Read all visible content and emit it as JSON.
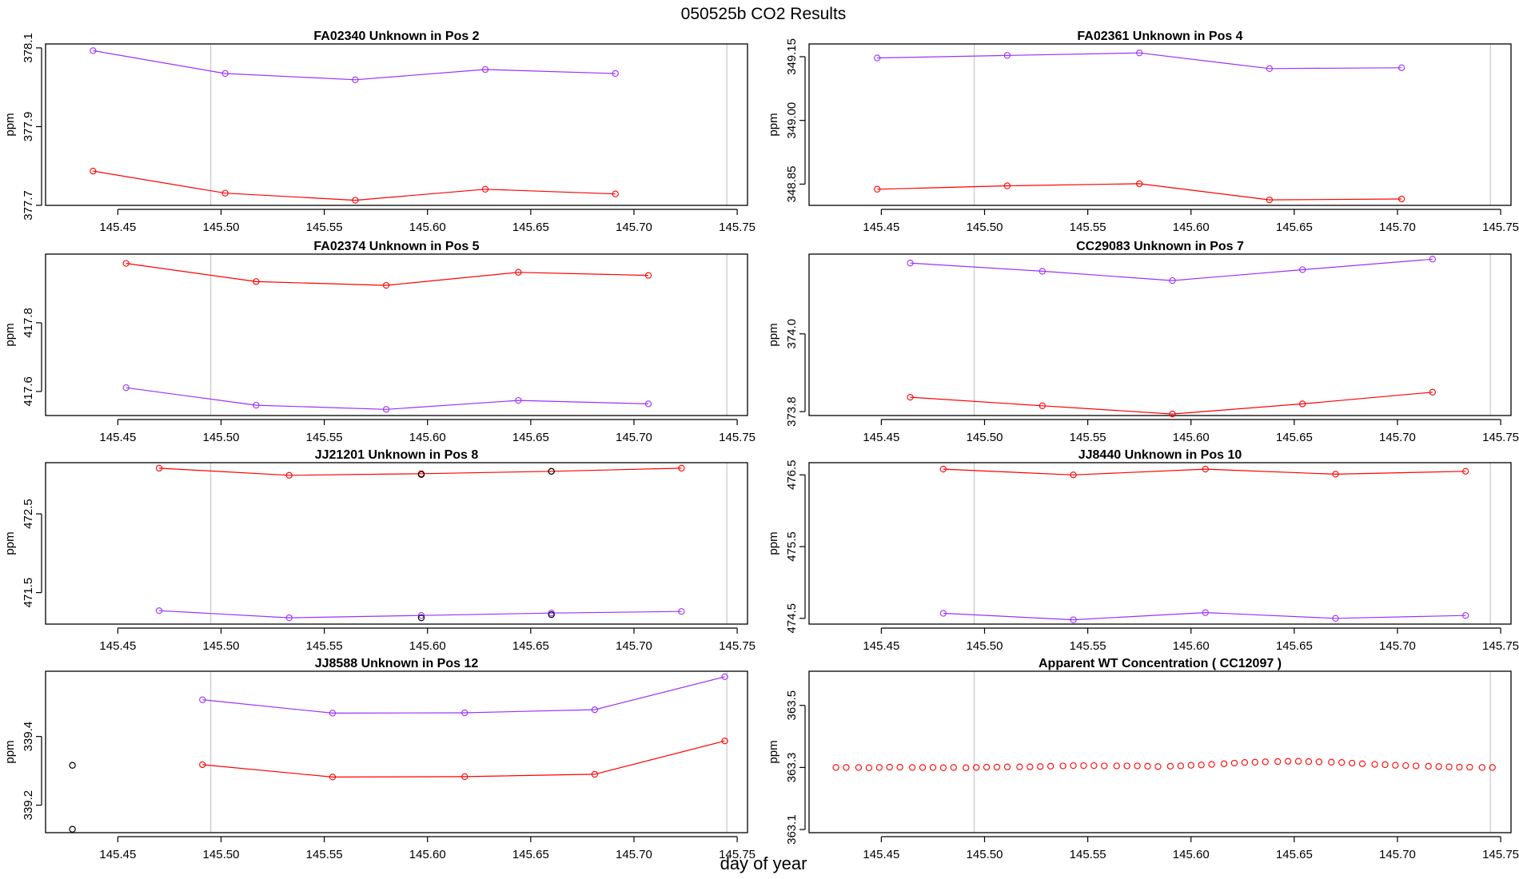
{
  "figure": {
    "title": "050525b  CO2 Results",
    "xlabel": "day of year",
    "colors": {
      "series_a": "#9b30ff",
      "series_b": "#ff0000",
      "outlier": "#000000",
      "frame": "#000000",
      "refline": "#c8c8c8"
    }
  },
  "chart_data": [
    {
      "type": "line",
      "title": "FA02340    Unknown in Pos 2",
      "ylabel": "ppm",
      "xlim": [
        145.415,
        145.755
      ],
      "ylim": [
        377.7,
        378.11
      ],
      "xticks": [
        "145.45",
        "145.50",
        "145.55",
        "145.60",
        "145.65",
        "145.70",
        "145.75"
      ],
      "yticks": [
        "377.7",
        "377.9",
        "378.1"
      ],
      "vlines": [
        145.495,
        145.745
      ],
      "series": [
        {
          "name": "upper",
          "color": "#9b30ff",
          "x": [
            145.438,
            145.502,
            145.565,
            145.628,
            145.691
          ],
          "y": [
            378.093,
            378.035,
            378.019,
            378.045,
            378.035
          ]
        },
        {
          "name": "lower",
          "color": "#ff0000",
          "x": [
            145.438,
            145.502,
            145.565,
            145.628,
            145.691
          ],
          "y": [
            377.787,
            377.731,
            377.713,
            377.741,
            377.729
          ]
        }
      ],
      "outliers": []
    },
    {
      "type": "line",
      "title": "FA02361    Unknown in Pos 4",
      "ylabel": "ppm",
      "xlim": [
        145.415,
        145.755
      ],
      "ylim": [
        348.8,
        349.18
      ],
      "xticks": [
        "145.45",
        "145.50",
        "145.55",
        "145.60",
        "145.65",
        "145.70",
        "145.75"
      ],
      "yticks": [
        "348.85",
        "349.00",
        "349.15"
      ],
      "vlines": [
        145.495,
        145.745
      ],
      "series": [
        {
          "name": "upper",
          "color": "#9b30ff",
          "x": [
            145.448,
            145.511,
            145.575,
            145.638,
            145.702
          ],
          "y": [
            349.147,
            349.153,
            349.159,
            349.122,
            349.124
          ]
        },
        {
          "name": "lower",
          "color": "#ff0000",
          "x": [
            145.448,
            145.511,
            145.575,
            145.638,
            145.702
          ],
          "y": [
            348.838,
            348.846,
            348.851,
            348.813,
            348.815
          ]
        }
      ],
      "outliers": []
    },
    {
      "type": "line",
      "title": "FA02374    Unknown in Pos 5",
      "ylabel": "ppm",
      "xlim": [
        145.415,
        145.755
      ],
      "ylim": [
        417.53,
        418.0
      ],
      "xticks": [
        "145.45",
        "145.50",
        "145.55",
        "145.60",
        "145.65",
        "145.70",
        "145.75"
      ],
      "yticks": [
        "417.6",
        "417.8"
      ],
      "vlines": [
        145.495,
        145.745
      ],
      "series": [
        {
          "name": "upper",
          "color": "#ff0000",
          "x": [
            145.454,
            145.517,
            145.58,
            145.644,
            145.707
          ],
          "y": [
            417.973,
            417.92,
            417.909,
            417.947,
            417.938
          ]
        },
        {
          "name": "lower",
          "color": "#9b30ff",
          "x": [
            145.454,
            145.517,
            145.58,
            145.644,
            145.707
          ],
          "y": [
            417.611,
            417.56,
            417.548,
            417.574,
            417.564
          ]
        }
      ],
      "outliers": []
    },
    {
      "type": "line",
      "title": "CC29083    Unknown in Pos 7",
      "ylabel": "ppm",
      "xlim": [
        145.415,
        145.755
      ],
      "ylim": [
        373.79,
        374.205
      ],
      "xticks": [
        "145.45",
        "145.50",
        "145.55",
        "145.60",
        "145.65",
        "145.70",
        "145.75"
      ],
      "yticks": [
        "373.8",
        "374.0"
      ],
      "vlines": [
        145.495,
        145.745
      ],
      "series": [
        {
          "name": "upper",
          "color": "#9b30ff",
          "x": [
            145.464,
            145.528,
            145.591,
            145.654,
            145.717
          ],
          "y": [
            374.182,
            374.161,
            374.137,
            374.165,
            374.192
          ]
        },
        {
          "name": "lower",
          "color": "#ff0000",
          "x": [
            145.464,
            145.528,
            145.591,
            145.654,
            145.717
          ],
          "y": [
            373.837,
            373.815,
            373.794,
            373.82,
            373.85
          ]
        }
      ],
      "outliers": []
    },
    {
      "type": "line",
      "title": "JJ21201    Unknown in Pos 8",
      "ylabel": "ppm",
      "xlim": [
        145.415,
        145.755
      ],
      "ylim": [
        471.1,
        473.15
      ],
      "xticks": [
        "145.45",
        "145.50",
        "145.55",
        "145.60",
        "145.65",
        "145.70",
        "145.75"
      ],
      "yticks": [
        "471.5",
        "472.5"
      ],
      "vlines": [
        145.495,
        145.745
      ],
      "series": [
        {
          "name": "upper",
          "color": "#ff0000",
          "x": [
            145.47,
            145.533,
            145.597,
            145.66,
            145.723
          ],
          "y": [
            473.08,
            472.99,
            473.01,
            473.04,
            473.08
          ]
        },
        {
          "name": "lower",
          "color": "#9b30ff",
          "x": [
            145.47,
            145.533,
            145.597,
            145.66,
            145.723
          ],
          "y": [
            471.27,
            471.18,
            471.21,
            471.24,
            471.26
          ]
        }
      ],
      "outliers": [
        {
          "x": 145.597,
          "y": 473.0
        },
        {
          "x": 145.66,
          "y": 473.04
        },
        {
          "x": 145.597,
          "y": 471.18
        },
        {
          "x": 145.66,
          "y": 471.22
        }
      ]
    },
    {
      "type": "line",
      "title": "JJ8440    Unknown in Pos 10",
      "ylabel": "ppm",
      "xlim": [
        145.415,
        145.755
      ],
      "ylim": [
        474.42,
        476.67
      ],
      "xticks": [
        "145.45",
        "145.50",
        "145.55",
        "145.60",
        "145.65",
        "145.70",
        "145.75"
      ],
      "yticks": [
        "474.5",
        "475.5",
        "476.5"
      ],
      "vlines": [
        145.495,
        145.745
      ],
      "series": [
        {
          "name": "upper",
          "color": "#ff0000",
          "x": [
            145.48,
            145.543,
            145.607,
            145.67,
            145.733
          ],
          "y": [
            476.58,
            476.5,
            476.58,
            476.51,
            476.55
          ]
        },
        {
          "name": "lower",
          "color": "#9b30ff",
          "x": [
            145.48,
            145.543,
            145.607,
            145.67,
            145.733
          ],
          "y": [
            474.57,
            474.48,
            474.58,
            474.5,
            474.54
          ]
        }
      ],
      "outliers": []
    },
    {
      "type": "line",
      "title": "JJ8588    Unknown in Pos 12",
      "ylabel": "ppm",
      "xlim": [
        145.415,
        145.755
      ],
      "ylim": [
        339.12,
        339.59
      ],
      "xticks": [
        "145.45",
        "145.50",
        "145.55",
        "145.60",
        "145.65",
        "145.70",
        "145.75"
      ],
      "yticks": [
        "339.2",
        "339.4"
      ],
      "vlines": [
        145.495,
        145.745
      ],
      "series": [
        {
          "name": "upper",
          "color": "#9b30ff",
          "x": [
            145.491,
            145.554,
            145.618,
            145.681,
            145.744
          ],
          "y": [
            339.507,
            339.468,
            339.469,
            339.478,
            339.574
          ]
        },
        {
          "name": "lower",
          "color": "#ff0000",
          "x": [
            145.491,
            145.554,
            145.618,
            145.681,
            145.744
          ],
          "y": [
            339.318,
            339.282,
            339.283,
            339.29,
            339.387
          ]
        }
      ],
      "outliers": [
        {
          "x": 145.428,
          "y": 339.316
        },
        {
          "x": 145.428,
          "y": 339.13
        }
      ]
    },
    {
      "type": "scatter",
      "title": "Apparent WT Concentration ( CC12097 )",
      "ylabel": "ppm",
      "xlim": [
        145.415,
        145.755
      ],
      "ylim": [
        363.09,
        363.61
      ],
      "xticks": [
        "145.45",
        "145.50",
        "145.55",
        "145.60",
        "145.65",
        "145.70",
        "145.75"
      ],
      "yticks": [
        "363.1",
        "363.3",
        "363.5"
      ],
      "vlines": [
        145.495,
        145.745
      ],
      "series": [
        {
          "name": "WT",
          "color": "#ff0000",
          "mode": "points",
          "x": [
            145.428,
            145.433,
            145.439,
            145.444,
            145.449,
            145.454,
            145.459,
            145.465,
            145.47,
            145.475,
            145.48,
            145.485,
            145.491,
            145.496,
            145.501,
            145.506,
            145.511,
            145.517,
            145.522,
            145.527,
            145.532,
            145.538,
            145.543,
            145.548,
            145.553,
            145.558,
            145.564,
            145.569,
            145.574,
            145.579,
            145.584,
            145.59,
            145.595,
            145.6,
            145.605,
            145.61,
            145.616,
            145.621,
            145.626,
            145.631,
            145.636,
            145.642,
            145.647,
            145.652,
            145.657,
            145.662,
            145.668,
            145.673,
            145.678,
            145.683,
            145.689,
            145.694,
            145.699,
            145.704,
            145.709,
            145.715,
            145.72,
            145.725,
            145.73,
            145.735,
            145.741,
            145.746
          ],
          "y": [
            363.3,
            363.3,
            363.3,
            363.299,
            363.3,
            363.301,
            363.301,
            363.3,
            363.3,
            363.3,
            363.299,
            363.3,
            363.299,
            363.3,
            363.301,
            363.301,
            363.302,
            363.302,
            363.302,
            363.303,
            363.304,
            363.305,
            363.306,
            363.306,
            363.306,
            363.305,
            363.305,
            363.305,
            363.305,
            363.304,
            363.303,
            363.304,
            363.305,
            363.307,
            363.308,
            363.31,
            363.312,
            363.314,
            363.316,
            363.317,
            363.318,
            363.319,
            363.32,
            363.32,
            363.319,
            363.318,
            363.317,
            363.316,
            363.314,
            363.312,
            363.31,
            363.309,
            363.307,
            363.306,
            363.305,
            363.304,
            363.303,
            363.302,
            363.301,
            363.301,
            363.3,
            363.3
          ]
        }
      ],
      "outliers": []
    }
  ]
}
